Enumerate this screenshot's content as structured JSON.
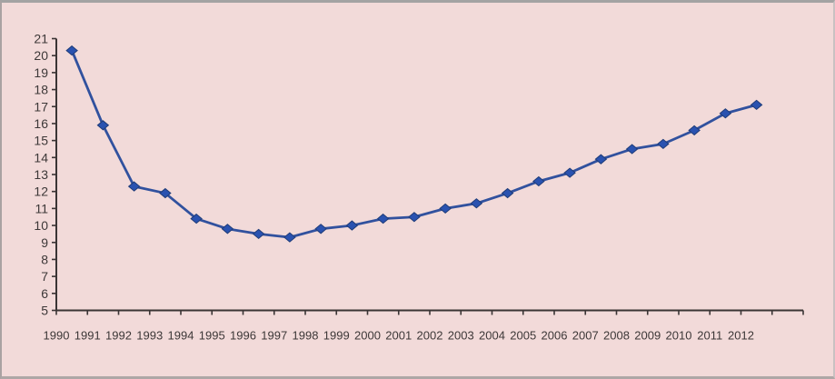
{
  "window": {
    "background_color": "#F2DAD9",
    "border_color": "#A6A0A0"
  },
  "chart_data": {
    "type": "line",
    "title": "",
    "xlabel": "",
    "ylabel": "",
    "categories": [
      "1990",
      "1991",
      "1992",
      "1993",
      "1994",
      "1995",
      "1996",
      "1997",
      "1998",
      "1999",
      "2000",
      "2001",
      "2002",
      "2003",
      "2004",
      "2005",
      "2006",
      "2007",
      "2008",
      "2009",
      "2010",
      "2011",
      "2012"
    ],
    "series": [
      {
        "name": "",
        "values": [
          20.3,
          15.9,
          12.3,
          11.9,
          10.4,
          9.8,
          9.5,
          9.3,
          9.8,
          10.0,
          10.4,
          10.5,
          11.0,
          11.3,
          11.9,
          12.6,
          13.1,
          13.9,
          14.5,
          14.8,
          15.6,
          16.6,
          17.1
        ]
      }
    ],
    "ylim": [
      5,
      21
    ],
    "ytick_step": 1,
    "ytick_labels": [
      "21",
      "20",
      "19",
      "18",
      "17",
      "16",
      "15",
      "14",
      "13",
      "12",
      "11",
      "10",
      "9",
      "8",
      "7",
      "6",
      "5"
    ],
    "grid": false,
    "legend_position": "none",
    "line_color": "#31519E",
    "marker_shape": "diamond",
    "marker_color": "#2A52B0",
    "marker_edge_color": "#1F3C78",
    "axis_color": "#3A3434",
    "tick_label_color": "#3D3838"
  }
}
